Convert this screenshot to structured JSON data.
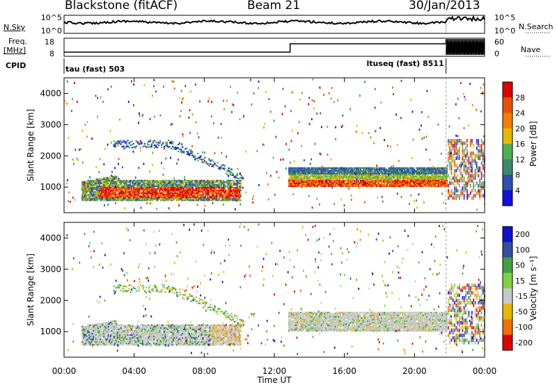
{
  "header": {
    "title": "Blackstone (fitACF)",
    "beam": "Beam 21",
    "date": "30/Jan/2013"
  },
  "sky_panel": {
    "left_label": "N.Sky",
    "right_label": "N.Search",
    "left_ticks": [
      "10^5",
      "10^0"
    ],
    "right_ticks": [
      "10^5",
      "10^0"
    ]
  },
  "freq_panel": {
    "left_label": "Freq.",
    "left_unit": "[MHz]",
    "left_ticks": [
      "18",
      "8"
    ],
    "right_ticks": [
      "60",
      "0"
    ],
    "right_label": "Nave",
    "cpid_label": "CPID",
    "cpid_segments": [
      "tau (fast) 503",
      "ltuseq (fast) 8511"
    ]
  },
  "colors": {
    "power_scale": [
      "#1010e0",
      "#3050b0",
      "#3a8a6a",
      "#50b050",
      "#e8b800",
      "#f08000",
      "#e85000",
      "#e00000"
    ],
    "velocity_scale": [
      "#1010d0",
      "#3050a0",
      "#40a040",
      "#80d040",
      "#c8c8c8",
      "#e8b800",
      "#f07000",
      "#e00000"
    ],
    "power_label_color": "#e00000",
    "velocity_label_color": "#1010d0"
  },
  "chart_data": [
    {
      "type": "heatmap",
      "title": "",
      "xlabel": "",
      "ylabel": "Slant Range [km]",
      "x_ticks": [
        "00:00",
        "04:00",
        "08:00",
        "12:00",
        "16:00",
        "20:00",
        "00:00"
      ],
      "y_ticks": [
        1000,
        2000,
        3000,
        4000
      ],
      "xlim": [
        0,
        24
      ],
      "ylim": [
        180,
        4500
      ],
      "colorbar_label": "Power [dB]",
      "colorbar_ticks": [
        4,
        8,
        12,
        16,
        20,
        24,
        28
      ],
      "colorbar_range": [
        0,
        32
      ]
    },
    {
      "type": "heatmap",
      "title": "",
      "xlabel": "Time UT",
      "ylabel": "Slant Range [km]",
      "x_ticks": [
        "00:00",
        "04:00",
        "08:00",
        "12:00",
        "16:00",
        "20:00",
        "00:00"
      ],
      "y_ticks": [
        1000,
        2000,
        3000,
        4000
      ],
      "xlim": [
        0,
        24
      ],
      "ylim": [
        180,
        4500
      ],
      "colorbar_label": "Velocity [m s⁻¹]",
      "colorbar_ticks": [
        200,
        100,
        50,
        15,
        -15,
        -50,
        -100,
        -200
      ]
    }
  ]
}
